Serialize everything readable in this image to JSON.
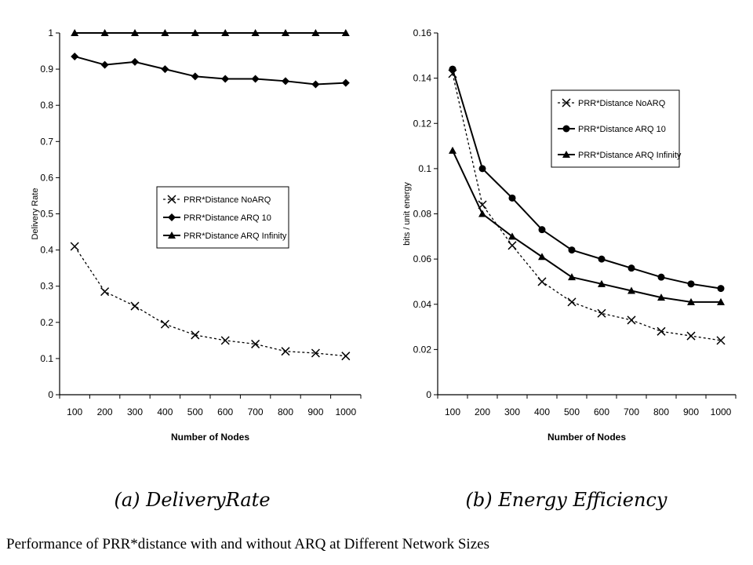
{
  "caption": "Performance of PRR*distance with and without ARQ at Different Network Sizes",
  "chart_data": [
    {
      "type": "line",
      "subcaption": "(a) DeliveryRate",
      "xlabel": "Number of Nodes",
      "ylabel": "Delivery Rate",
      "x": [
        100,
        200,
        300,
        400,
        500,
        600,
        700,
        800,
        900,
        1000
      ],
      "ylim": [
        0,
        1
      ],
      "yticks": [
        "0",
        "0.1",
        "0.2",
        "0.3",
        "0.4",
        "0.5",
        "0.6",
        "0.7",
        "0.8",
        "0.9",
        "1"
      ],
      "grid": false,
      "legend_position": "center-right",
      "series": [
        {
          "name": "PRR*Distance NoARQ",
          "marker": "x",
          "style": "dotted",
          "values": [
            0.41,
            0.285,
            0.245,
            0.195,
            0.165,
            0.15,
            0.14,
            0.12,
            0.115,
            0.107
          ]
        },
        {
          "name": "PRR*Distance ARQ 10",
          "marker": "diamond",
          "style": "solid",
          "values": [
            0.935,
            0.912,
            0.92,
            0.9,
            0.88,
            0.873,
            0.873,
            0.867,
            0.858,
            0.862
          ]
        },
        {
          "name": "PRR*Distance ARQ Infinity",
          "marker": "triangle",
          "style": "solid",
          "values": [
            1,
            1,
            1,
            1,
            1,
            1,
            1,
            1,
            1,
            1
          ]
        }
      ]
    },
    {
      "type": "line",
      "subcaption": "(b) Energy Efficiency",
      "xlabel": "Number of Nodes",
      "ylabel": "bits / unit energy",
      "x": [
        100,
        200,
        300,
        400,
        500,
        600,
        700,
        800,
        900,
        1000
      ],
      "ylim": [
        0,
        0.16
      ],
      "yticks": [
        "0",
        "0.02",
        "0.04",
        "0.06",
        "0.08",
        "0.1",
        "0.12",
        "0.14",
        "0.16"
      ],
      "grid": false,
      "legend_position": "top-right",
      "series": [
        {
          "name": "PRR*Distance NoARQ",
          "marker": "x",
          "style": "dotted",
          "values": [
            0.142,
            0.084,
            0.066,
            0.05,
            0.041,
            0.036,
            0.033,
            0.028,
            0.026,
            0.024
          ]
        },
        {
          "name": "PRR*Distance ARQ 10",
          "marker": "circle",
          "style": "solid",
          "values": [
            0.144,
            0.1,
            0.087,
            0.073,
            0.064,
            0.06,
            0.056,
            0.052,
            0.049,
            0.047
          ]
        },
        {
          "name": "PRR*Distance ARQ Infinity",
          "marker": "triangle",
          "style": "solid",
          "values": [
            0.108,
            0.08,
            0.07,
            0.061,
            0.052,
            0.049,
            0.046,
            0.043,
            0.041,
            0.041
          ]
        }
      ]
    }
  ]
}
